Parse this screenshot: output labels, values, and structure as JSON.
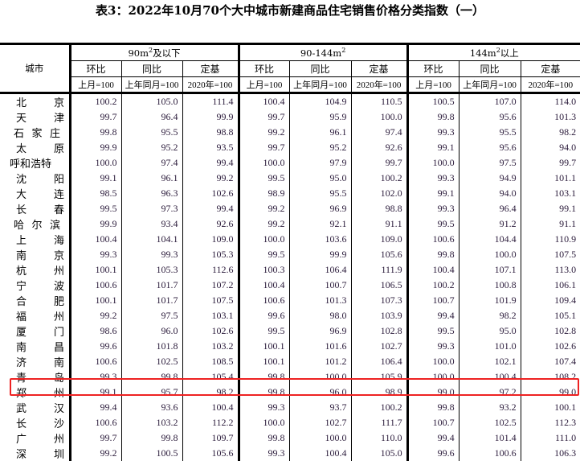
{
  "title": "表3：2022年10月70个大中城市新建商品住宅销售价格分类指数（一）",
  "header": {
    "city_label": "城市",
    "groups": [
      {
        "base": "90m",
        "sup": "2",
        "suffix": "及以下"
      },
      {
        "base": "90-144m",
        "sup": "2",
        "suffix": ""
      },
      {
        "base": "144m",
        "sup": "2",
        "suffix": "以上"
      }
    ],
    "metrics": [
      "环比",
      "同比",
      "定基"
    ],
    "bases": [
      "上月=100",
      "上年同月=100",
      "2020年=100"
    ]
  },
  "highlight_color": "#ee2222",
  "highlighted_city": "郑州",
  "rows": [
    {
      "city": "北京",
      "v": [
        "100.2",
        "105.0",
        "111.4",
        "100.4",
        "104.9",
        "110.5",
        "100.5",
        "107.0",
        "114.0"
      ]
    },
    {
      "city": "天津",
      "v": [
        "99.7",
        "96.4",
        "99.9",
        "99.7",
        "95.9",
        "100.0",
        "99.8",
        "95.6",
        "101.3"
      ]
    },
    {
      "city": "石家庄",
      "v": [
        "99.8",
        "95.5",
        "98.8",
        "99.2",
        "96.1",
        "97.4",
        "99.3",
        "95.5",
        "98.2"
      ]
    },
    {
      "city": "太原",
      "v": [
        "99.9",
        "95.2",
        "93.5",
        "99.7",
        "95.2",
        "92.6",
        "99.1",
        "95.6",
        "94.0"
      ]
    },
    {
      "city": "呼和浩特",
      "v": [
        "100.0",
        "97.4",
        "99.4",
        "100.0",
        "97.9",
        "99.7",
        "100.0",
        "97.5",
        "99.7"
      ]
    },
    {
      "city": "沈阳",
      "v": [
        "99.1",
        "96.1",
        "99.2",
        "99.5",
        "95.0",
        "100.2",
        "99.3",
        "94.9",
        "101.1"
      ]
    },
    {
      "city": "大连",
      "v": [
        "98.5",
        "96.3",
        "102.6",
        "98.9",
        "95.5",
        "102.0",
        "99.1",
        "94.0",
        "103.1"
      ]
    },
    {
      "city": "长春",
      "v": [
        "99.5",
        "97.3",
        "99.4",
        "99.2",
        "96.9",
        "98.8",
        "99.3",
        "96.4",
        "99.1"
      ]
    },
    {
      "city": "哈尔滨",
      "v": [
        "99.9",
        "93.4",
        "92.6",
        "99.2",
        "92.1",
        "91.1",
        "99.5",
        "91.2",
        "91.1"
      ]
    },
    {
      "city": "上海",
      "v": [
        "100.4",
        "104.1",
        "109.0",
        "100.0",
        "103.6",
        "109.0",
        "100.6",
        "104.4",
        "110.9"
      ]
    },
    {
      "city": "南京",
      "v": [
        "99.3",
        "99.3",
        "105.3",
        "99.5",
        "99.9",
        "105.6",
        "99.8",
        "100.0",
        "107.5"
      ]
    },
    {
      "city": "杭州",
      "v": [
        "100.1",
        "105.3",
        "112.6",
        "100.3",
        "106.4",
        "111.9",
        "100.4",
        "107.1",
        "113.0"
      ]
    },
    {
      "city": "宁波",
      "v": [
        "100.6",
        "101.7",
        "107.2",
        "100.4",
        "100.7",
        "106.5",
        "100.2",
        "100.8",
        "106.1"
      ]
    },
    {
      "city": "合肥",
      "v": [
        "100.1",
        "101.7",
        "107.5",
        "100.6",
        "101.3",
        "107.3",
        "100.7",
        "101.9",
        "109.4"
      ]
    },
    {
      "city": "福州",
      "v": [
        "99.2",
        "97.5",
        "103.1",
        "99.6",
        "98.0",
        "103.9",
        "99.4",
        "98.2",
        "105.1"
      ]
    },
    {
      "city": "厦门",
      "v": [
        "98.6",
        "96.0",
        "102.6",
        "99.5",
        "96.9",
        "102.8",
        "99.5",
        "95.0",
        "102.8"
      ]
    },
    {
      "city": "南昌",
      "v": [
        "99.6",
        "101.8",
        "103.2",
        "100.1",
        "101.6",
        "102.7",
        "99.3",
        "101.0",
        "102.6"
      ]
    },
    {
      "city": "济南",
      "v": [
        "100.6",
        "102.5",
        "108.5",
        "100.1",
        "101.2",
        "106.4",
        "100.0",
        "102.1",
        "107.4"
      ]
    },
    {
      "city": "青岛",
      "v": [
        "99.3",
        "99.8",
        "105.4",
        "99.8",
        "100.0",
        "105.9",
        "100.0",
        "100.4",
        "108.2"
      ]
    },
    {
      "city": "郑州",
      "v": [
        "99.1",
        "95.7",
        "98.2",
        "99.8",
        "96.0",
        "98.9",
        "99.0",
        "97.2",
        "99.0"
      ]
    },
    {
      "city": "武汉",
      "v": [
        "99.4",
        "93.6",
        "100.4",
        "99.3",
        "93.7",
        "100.2",
        "99.8",
        "93.2",
        "100.1"
      ]
    },
    {
      "city": "长沙",
      "v": [
        "100.6",
        "103.2",
        "112.2",
        "100.0",
        "102.7",
        "111.7",
        "100.7",
        "102.5",
        "112.3"
      ]
    },
    {
      "city": "广州",
      "v": [
        "99.7",
        "99.8",
        "109.7",
        "99.8",
        "100.0",
        "110.0",
        "99.4",
        "101.4",
        "111.0"
      ]
    },
    {
      "city": "深圳",
      "v": [
        "99.2",
        "100.5",
        "105.6",
        "99.3",
        "100.4",
        "105.0",
        "99.6",
        "100.6",
        "106.3"
      ]
    }
  ]
}
